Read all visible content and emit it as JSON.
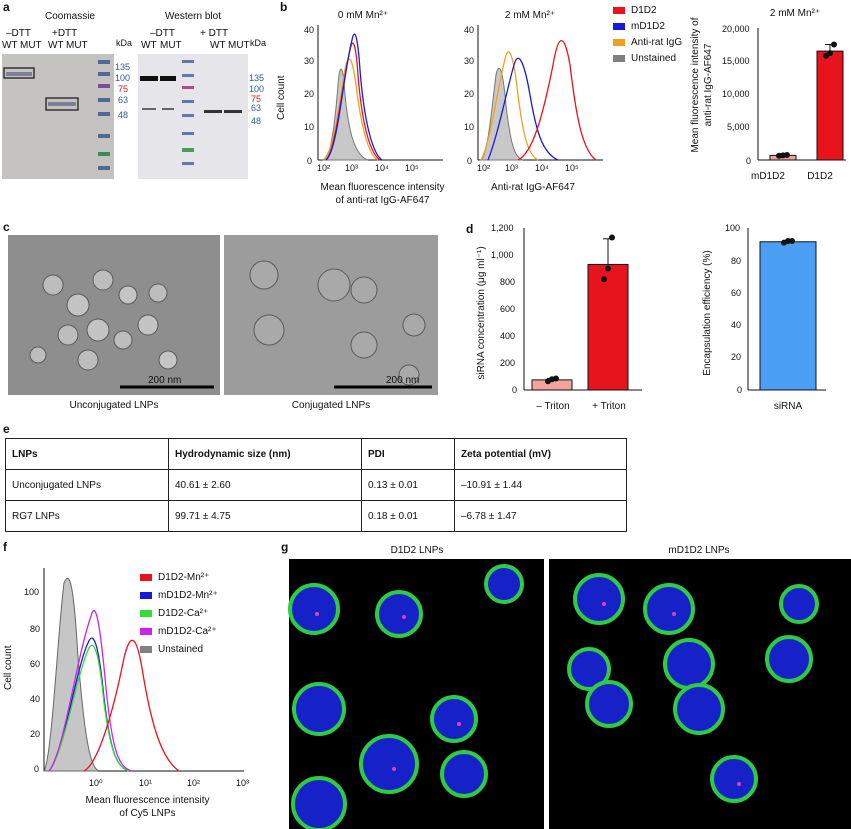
{
  "panel_a": {
    "label": "a",
    "coomassie_title": "Coomassie",
    "coomassie_groups": [
      "–DTT",
      "+DTT"
    ],
    "coomassie_lanes": [
      "WT",
      "MUT",
      "WT",
      "MUT"
    ],
    "kda_label": "kDa",
    "markers": [
      "135",
      "100",
      "75",
      "63",
      "48"
    ],
    "western_title": "Western blot",
    "western_groups": [
      "–DTT",
      "+ DTT"
    ],
    "western_lanes": [
      "WT",
      "MUT",
      "WT",
      "MUT"
    ],
    "western_markers": [
      "135",
      "100",
      "75",
      "63",
      "48"
    ]
  },
  "panel_b": {
    "label": "b",
    "hist1_title": "0 mM Mn²⁺",
    "hist2_title": "2 mM Mn²⁺",
    "ylabel": "Cell count",
    "xlabel_1a": "Mean fluorescence intensity",
    "xlabel_1b": "of anti-rat IgG-AF647",
    "xlabel_2": "Anti-rat IgG-AF647",
    "yticks_1": [
      "0",
      "10",
      "20",
      "30",
      "40"
    ],
    "yticks_2": [
      "0",
      "10",
      "20",
      "30",
      "40"
    ],
    "xticks": [
      "10²",
      "10³",
      "10⁴",
      "10⁵"
    ],
    "legend": [
      "D1D2",
      "mD1D2",
      "Anti-rat IgG",
      "Unstained"
    ],
    "bar_title": "2 mM Mn²⁺",
    "bar_ylabel_1": "Mean fluorescence intensity of",
    "bar_ylabel_2": "anti-rat IgG-AF647",
    "bar_yticks": [
      "0",
      "5,000",
      "10,000",
      "15,000",
      "20,000"
    ],
    "bar_categories": [
      "mD1D2",
      "D1D2"
    ]
  },
  "panel_c": {
    "label": "c",
    "scale1": "200 nm",
    "scale2": "200 nm",
    "caption1": "Unconjugated LNPs",
    "caption2": "Conjugated LNPs"
  },
  "panel_d": {
    "label": "d",
    "ylabel1": "siRNA concentration (μg ml⁻¹)",
    "yticks1": [
      "0",
      "200",
      "400",
      "600",
      "800",
      "1,000",
      "1,200"
    ],
    "cats1": [
      "– Triton",
      "+ Triton"
    ],
    "ylabel2": "Encapsulation efficiency (%)",
    "yticks2": [
      "0",
      "20",
      "40",
      "60",
      "80",
      "100"
    ],
    "cats2": [
      "siRNA"
    ]
  },
  "panel_e": {
    "label": "e",
    "headers": [
      "LNPs",
      "Hydrodynamic size (nm)",
      "PDI",
      "Zeta potential (mV)"
    ],
    "rows": [
      [
        "Unconjugated LNPs",
        "40.61 ± 2.60",
        "0.13 ± 0.01",
        "–10.91 ± 1.44"
      ],
      [
        "RG7 LNPs",
        "99.71 ± 4.75",
        "0.18 ± 0.01",
        "–6.78 ± 1.47"
      ]
    ]
  },
  "panel_f": {
    "label": "f",
    "ylabel": "Cell count",
    "yticks": [
      "0",
      "20",
      "40",
      "60",
      "80",
      "100"
    ],
    "xticks": [
      "10⁰",
      "10¹",
      "10²",
      "10³"
    ],
    "xlabel_a": "Mean fluorescence intensity",
    "xlabel_b": "of Cy5 LNPs",
    "legend": [
      "D1D2-Mn²⁺",
      "mD1D2-Mn²⁺",
      "D1D2-Ca²⁺",
      "mD1D2-Ca²⁺",
      "Unstained"
    ]
  },
  "panel_g": {
    "label": "g",
    "title1": "D1D2 LNPs",
    "title2": "mD1D2 LNPs"
  },
  "colors": {
    "d1d2": "#e8141c",
    "md1d2": "#1a1adc",
    "antirat": "#f0a020",
    "unstained": "#808080",
    "ca_d1d2": "#33dd33",
    "ca_md1d2": "#cc22ee",
    "sirna_bar": "#4a9ff5",
    "minus_triton": "#f2a39b"
  },
  "chart_data": [
    {
      "type": "bar",
      "title": "2 mM Mn²⁺",
      "categories": [
        "mD1D2",
        "D1D2"
      ],
      "values": [
        700,
        16500
      ],
      "points": [
        [
          650,
          700,
          750
        ],
        [
          15800,
          16200,
          17500
        ]
      ],
      "errors": [
        100,
        1000
      ],
      "ylabel": "Mean fluorescence intensity of anti-rat IgG-AF647",
      "ylim": [
        0,
        20000
      ],
      "colors": [
        "#f2a39b",
        "#e8141c"
      ]
    },
    {
      "type": "bar",
      "categories": [
        "– Triton",
        "+ Triton"
      ],
      "values": [
        75,
        930
      ],
      "points": [
        [
          65,
          80,
          85
        ],
        [
          820,
          900,
          1130
        ]
      ],
      "errors": [
        10,
        190
      ],
      "ylabel": "siRNA concentration (μg ml⁻¹)",
      "ylim": [
        0,
        1200
      ],
      "colors": [
        "#f2a39b",
        "#e8141c"
      ]
    },
    {
      "type": "bar",
      "categories": [
        "siRNA"
      ],
      "values": [
        91.5
      ],
      "points": [
        [
          91,
          92,
          92
        ]
      ],
      "errors": [
        0.5
      ],
      "ylabel": "Encapsulation efficiency (%)",
      "ylim": [
        0,
        100
      ],
      "colors": [
        "#4a9ff5"
      ]
    }
  ]
}
